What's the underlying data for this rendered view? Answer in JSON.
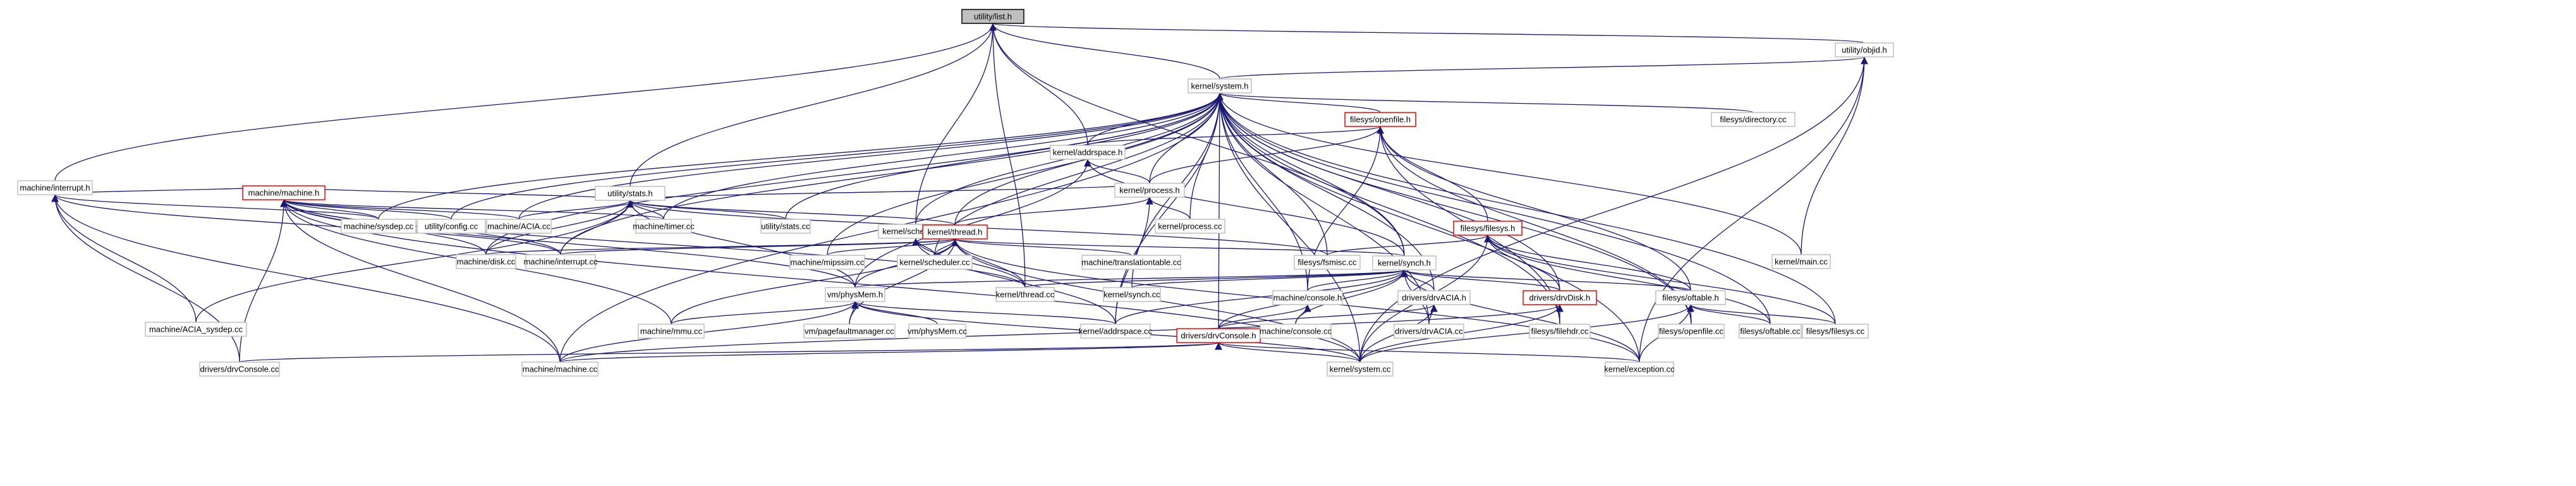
{
  "graph": {
    "title": "utility/list.h",
    "edge_color": "#191970",
    "node_border": "#bfbfbf",
    "root_fill": "#bfbfbf",
    "truncated_border": "#ff0000",
    "nodes": [
      {
        "id": "n0",
        "label": "utility/list.h",
        "root": true
      },
      {
        "id": "n1",
        "label": "utility/objid.h"
      },
      {
        "id": "n2",
        "label": "kernel/system.h"
      },
      {
        "id": "n3",
        "label": "machine/interrupt.h"
      },
      {
        "id": "n4",
        "label": "filesys/openfile.h",
        "truncated": true
      },
      {
        "id": "n5",
        "label": "filesys/directory.cc"
      },
      {
        "id": "n6",
        "label": "utility/stats.h"
      },
      {
        "id": "n7",
        "label": "kernel/addrspace.h"
      },
      {
        "id": "n8",
        "label": "kernel/process.h"
      },
      {
        "id": "n9",
        "label": "machine/machine.h",
        "truncated": true
      },
      {
        "id": "n10",
        "label": "utility/stats.cc"
      },
      {
        "id": "n11",
        "label": "filesys/filesys.h",
        "truncated": true
      },
      {
        "id": "n12",
        "label": "kernel/scheduler.h"
      },
      {
        "id": "n13",
        "label": "kernel/thread.h",
        "truncated": true
      },
      {
        "id": "n14",
        "label": "machine/sysdep.cc"
      },
      {
        "id": "n15",
        "label": "utility/config.cc"
      },
      {
        "id": "n16",
        "label": "machine/ACIA.cc"
      },
      {
        "id": "n17",
        "label": "machine/timer.cc"
      },
      {
        "id": "n18",
        "label": "kernel/process.cc"
      },
      {
        "id": "n19",
        "label": "machine/disk.cc"
      },
      {
        "id": "n20",
        "label": "machine/interrupt.cc"
      },
      {
        "id": "n21",
        "label": "machine/mipssim.cc"
      },
      {
        "id": "n22",
        "label": "kernel/scheduler.cc"
      },
      {
        "id": "n23",
        "label": "machine/translationtable.cc"
      },
      {
        "id": "n24",
        "label": "filesys/fsmisc.cc"
      },
      {
        "id": "n25",
        "label": "kernel/synch.h"
      },
      {
        "id": "n26",
        "label": "kernel/main.cc"
      },
      {
        "id": "n27",
        "label": "vm/physMem.h"
      },
      {
        "id": "n28",
        "label": "kernel/thread.cc"
      },
      {
        "id": "n29",
        "label": "kernel/synch.cc"
      },
      {
        "id": "n30",
        "label": "machine/console.h"
      },
      {
        "id": "n31",
        "label": "drivers/drvACIA.h"
      },
      {
        "id": "n32",
        "label": "drivers/drvDisk.h",
        "truncated": true
      },
      {
        "id": "n33",
        "label": "filesys/oftable.h"
      },
      {
        "id": "n34",
        "label": "machine/ACIA_sysdep.cc"
      },
      {
        "id": "n35",
        "label": "machine/mmu.cc"
      },
      {
        "id": "n36",
        "label": "vm/pagefaultmanager.cc"
      },
      {
        "id": "n37",
        "label": "vm/physMem.cc"
      },
      {
        "id": "n38",
        "label": "kernel/addrspace.cc"
      },
      {
        "id": "n39",
        "label": "drivers/drvConsole.h",
        "truncated": true
      },
      {
        "id": "n40",
        "label": "machine/console.cc"
      },
      {
        "id": "n41",
        "label": "drivers/drvACIA.cc"
      },
      {
        "id": "n42",
        "label": "filesys/filehdr.cc"
      },
      {
        "id": "n43",
        "label": "filesys/openfile.cc"
      },
      {
        "id": "n44",
        "label": "filesys/oftable.cc"
      },
      {
        "id": "n45",
        "label": "filesys/filesys.cc"
      },
      {
        "id": "n46",
        "label": "drivers/drvConsole.cc"
      },
      {
        "id": "n47",
        "label": "machine/machine.cc"
      },
      {
        "id": "n48",
        "label": "kernel/system.cc"
      },
      {
        "id": "n49",
        "label": "kernel/exception.cc"
      }
    ]
  }
}
